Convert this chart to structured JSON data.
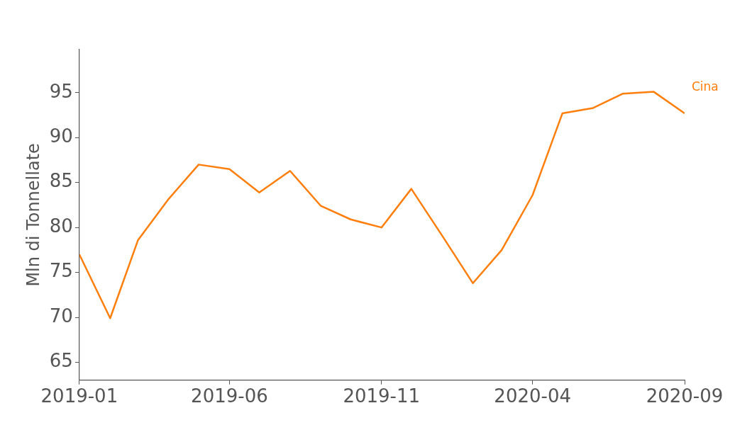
{
  "chart_data": {
    "type": "line",
    "ylabel": "Mln di Tonnellate",
    "x": [
      "2019-01",
      "2019-02",
      "2019-03",
      "2019-04",
      "2019-05",
      "2019-06",
      "2019-07",
      "2019-08",
      "2019-09",
      "2019-10",
      "2019-11",
      "2019-12",
      "2020-01",
      "2020-02",
      "2020-03",
      "2020-04",
      "2020-05",
      "2020-06",
      "2020-07",
      "2020-08",
      "2020-09"
    ],
    "series": [
      {
        "name": "Cina",
        "color": "#ff7f0e",
        "values": [
          77.0,
          69.9,
          78.6,
          83.2,
          87.0,
          86.5,
          83.9,
          86.3,
          82.4,
          80.9,
          80.0,
          84.3,
          79.1,
          73.8,
          77.5,
          83.6,
          92.7,
          93.3,
          94.9,
          95.1,
          92.7
        ]
      }
    ],
    "xlim": [
      "2019-01",
      "2020-09"
    ],
    "xticks": [
      "2019-01",
      "2019-06",
      "2019-11",
      "2020-04",
      "2020-09"
    ],
    "ylim": [
      63,
      99.8
    ],
    "yticks": [
      65,
      70,
      75,
      80,
      85,
      90,
      95
    ],
    "grid": false,
    "legend": false,
    "marker": "none",
    "line_style": "solid"
  }
}
